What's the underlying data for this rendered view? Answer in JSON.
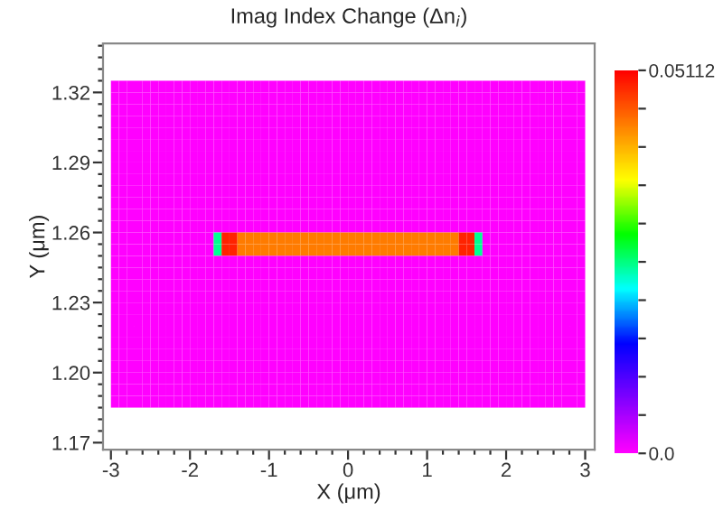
{
  "chart_data": {
    "type": "heatmap",
    "title": "Imag Index Change (Δn$_{i}$)",
    "xlabel": "X (μm)",
    "ylabel": "Y (μm)",
    "xlim": [
      -3.1,
      3.12
    ],
    "ylim": [
      1.167,
      1.341
    ],
    "xticks": [
      -3,
      {
        "value": -2.8,
        "label": null
      },
      {
        "value": -2.6,
        "label": null
      },
      {
        "value": -2.4,
        "label": null
      },
      {
        "value": -2.2,
        "label": null
      },
      -2,
      {
        "value": -1.8,
        "label": null
      },
      {
        "value": -1.6,
        "label": null
      },
      {
        "value": -1.4,
        "label": null
      },
      {
        "value": -1.2,
        "label": null
      },
      -1,
      {
        "value": -0.8,
        "label": null
      },
      {
        "value": -0.6,
        "label": null
      },
      {
        "value": -0.4,
        "label": null
      },
      {
        "value": -0.2,
        "label": null
      },
      0,
      {
        "value": 0.2,
        "label": null
      },
      {
        "value": 0.4,
        "label": null
      },
      {
        "value": 0.6,
        "label": null
      },
      {
        "value": 0.8,
        "label": null
      },
      1,
      {
        "value": 1.2,
        "label": null
      },
      {
        "value": 1.4,
        "label": null
      },
      {
        "value": 1.6,
        "label": null
      },
      {
        "value": 1.8,
        "label": null
      },
      2,
      {
        "value": 2.2,
        "label": null
      },
      {
        "value": 2.4,
        "label": null
      },
      {
        "value": 2.6,
        "label": null
      },
      {
        "value": 2.8,
        "label": null
      },
      3
    ],
    "yticks": [
      {
        "value": 1.17,
        "label": "1.17"
      },
      {
        "value": 1.175,
        "label": null
      },
      {
        "value": 1.18,
        "label": null
      },
      {
        "value": 1.185,
        "label": null
      },
      {
        "value": 1.19,
        "label": null
      },
      {
        "value": 1.195,
        "label": null
      },
      {
        "value": 1.2,
        "label": "1.20"
      },
      {
        "value": 1.205,
        "label": null
      },
      {
        "value": 1.21,
        "label": null
      },
      {
        "value": 1.215,
        "label": null
      },
      {
        "value": 1.22,
        "label": null
      },
      {
        "value": 1.225,
        "label": null
      },
      {
        "value": 1.23,
        "label": "1.23"
      },
      {
        "value": 1.235,
        "label": null
      },
      {
        "value": 1.24,
        "label": null
      },
      {
        "value": 1.245,
        "label": null
      },
      {
        "value": 1.25,
        "label": null
      },
      {
        "value": 1.255,
        "label": null
      },
      {
        "value": 1.26,
        "label": "1.26"
      },
      {
        "value": 1.265,
        "label": null
      },
      {
        "value": 1.27,
        "label": null
      },
      {
        "value": 1.275,
        "label": null
      },
      {
        "value": 1.28,
        "label": null
      },
      {
        "value": 1.285,
        "label": null
      },
      {
        "value": 1.29,
        "label": "1.29"
      },
      {
        "value": 1.295,
        "label": null
      },
      {
        "value": 1.3,
        "label": null
      },
      {
        "value": 1.305,
        "label": null
      },
      {
        "value": 1.31,
        "label": null
      },
      {
        "value": 1.315,
        "label": null
      },
      {
        "value": 1.32,
        "label": "1.32"
      },
      {
        "value": 1.325,
        "label": null
      },
      {
        "value": 1.33,
        "label": null
      },
      {
        "value": 1.335,
        "label": null
      },
      {
        "value": 1.34,
        "label": null
      }
    ],
    "clim": [
      0,
      0.05112
    ],
    "cticks": [
      {
        "value": 0,
        "label": "0.0"
      },
      {
        "value": 0.005112,
        "label": null
      },
      {
        "value": 0.010224,
        "label": null
      },
      {
        "value": 0.015336,
        "label": null
      },
      {
        "value": 0.020448,
        "label": null
      },
      {
        "value": 0.02556,
        "label": null
      },
      {
        "value": 0.030672,
        "label": null
      },
      {
        "value": 0.035784,
        "label": null
      },
      {
        "value": 0.040896,
        "label": null
      },
      {
        "value": 0.046008,
        "label": null
      },
      {
        "value": 0.05112,
        "label": "0.05112"
      }
    ],
    "x": [
      -2.95,
      -2.85,
      -2.75,
      -2.65,
      -2.55,
      -2.45,
      -2.35,
      -2.25,
      -2.15,
      -2.05,
      -1.95,
      -1.85,
      -1.75,
      -1.65,
      -1.55,
      -1.45,
      -1.35,
      -1.25,
      -1.15,
      -1.05,
      -0.95,
      -0.85,
      -0.75,
      -0.65,
      -0.55,
      -0.45,
      -0.35,
      -0.25,
      -0.15,
      -0.05,
      0.05,
      0.15,
      0.25,
      0.35,
      0.45,
      0.55,
      0.65,
      0.75,
      0.85,
      0.95,
      1.05,
      1.15,
      1.25,
      1.35,
      1.45,
      1.55,
      1.65,
      1.75,
      1.85,
      1.95,
      2.05,
      2.15,
      2.25,
      2.35,
      2.45,
      2.55,
      2.65,
      2.75,
      2.85,
      2.95
    ],
    "y": [
      1.3225,
      1.3175,
      1.3125,
      1.3075,
      1.3025,
      1.2975,
      1.2925,
      1.2875,
      1.2825,
      1.2775,
      1.2725,
      1.2675,
      1.2625,
      1.2575,
      1.2525,
      1.2475,
      1.2425,
      1.2375,
      1.2325,
      1.2275,
      1.2225,
      1.2175,
      1.2125,
      1.2075,
      1.2025,
      1.1975,
      1.1925,
      1.1875
    ],
    "cells": [
      [
        0,
        0,
        0,
        0,
        0,
        0,
        0,
        0,
        0,
        0,
        0,
        0,
        0,
        0,
        0,
        0,
        0,
        0,
        0,
        0,
        0,
        0,
        0,
        0,
        0,
        0,
        0,
        0,
        0,
        0,
        0,
        0,
        0,
        0,
        0,
        0,
        0,
        0,
        0,
        0,
        0,
        0,
        0,
        0,
        0,
        0,
        0,
        0,
        0,
        0,
        0,
        0,
        0,
        0,
        0,
        0,
        0,
        0,
        0,
        0
      ],
      [
        0,
        0,
        0,
        0,
        0,
        0,
        0,
        0,
        0,
        0,
        0,
        0,
        0,
        0,
        0,
        0,
        0,
        0,
        0,
        0,
        0,
        0,
        0,
        0,
        0,
        0,
        0,
        0,
        0,
        0,
        0,
        0,
        0,
        0,
        0,
        0,
        0,
        0,
        0,
        0,
        0,
        0,
        0,
        0,
        0,
        0,
        0,
        0,
        0,
        0,
        0,
        0,
        0,
        0,
        0,
        0,
        0,
        0,
        0,
        0
      ],
      [
        0,
        0,
        0,
        0,
        0,
        0,
        0,
        0,
        0,
        0,
        0,
        0,
        0,
        0,
        0,
        0,
        0,
        0,
        0,
        0,
        0,
        0,
        0,
        0,
        0,
        0,
        0,
        0,
        0,
        0,
        0,
        0,
        0,
        0,
        0,
        0,
        0,
        0,
        0,
        0,
        0,
        0,
        0,
        0,
        0,
        0,
        0,
        0,
        0,
        0,
        0,
        0,
        0,
        0,
        0,
        0,
        0,
        0,
        0,
        0
      ],
      [
        0,
        0,
        0,
        0,
        0,
        0,
        0,
        0,
        0,
        0,
        0,
        0,
        0,
        0,
        0,
        0,
        0,
        0,
        0,
        0,
        0,
        0,
        0,
        0,
        0,
        0,
        0,
        0,
        0,
        0,
        0,
        0,
        0,
        0,
        0,
        0,
        0,
        0,
        0,
        0,
        0,
        0,
        0,
        0,
        0,
        0,
        0,
        0,
        0,
        0,
        0,
        0,
        0,
        0,
        0,
        0,
        0,
        0,
        0,
        0
      ],
      [
        0,
        0,
        0,
        0,
        0,
        0,
        0,
        0,
        0,
        0,
        0,
        0,
        0,
        0,
        0,
        0,
        0,
        0,
        0,
        0,
        0,
        0,
        0,
        0,
        0,
        0,
        0,
        0,
        0,
        0,
        0,
        0,
        0,
        0,
        0,
        0,
        0,
        0,
        0,
        0,
        0,
        0,
        0,
        0,
        0,
        0,
        0,
        0,
        0,
        0,
        0,
        0,
        0,
        0,
        0,
        0,
        0,
        0,
        0,
        0
      ],
      [
        0,
        0,
        0,
        0,
        0,
        0,
        0,
        0,
        0,
        0,
        0,
        0,
        0,
        0,
        0,
        0,
        0,
        0,
        0,
        0,
        0,
        0,
        0,
        0,
        0,
        0,
        0,
        0,
        0,
        0,
        0,
        0,
        0,
        0,
        0,
        0,
        0,
        0,
        0,
        0,
        0,
        0,
        0,
        0,
        0,
        0,
        0,
        0,
        0,
        0,
        0,
        0,
        0,
        0,
        0,
        0,
        0,
        0,
        0,
        0
      ],
      [
        0,
        0,
        0,
        0,
        0,
        0,
        0,
        0,
        0,
        0,
        0,
        0,
        0,
        0,
        0,
        0,
        0,
        0,
        0,
        0,
        0,
        0,
        0,
        0,
        0,
        0,
        0,
        0,
        0,
        0,
        0,
        0,
        0,
        0,
        0,
        0,
        0,
        0,
        0,
        0,
        0,
        0,
        0,
        0,
        0,
        0,
        0,
        0,
        0,
        0,
        0,
        0,
        0,
        0,
        0,
        0,
        0,
        0,
        0,
        0
      ],
      [
        0,
        0,
        0,
        0,
        0,
        0,
        0,
        0,
        0,
        0,
        0,
        0,
        0,
        0,
        0,
        0,
        0,
        0,
        0,
        0,
        0,
        0,
        0,
        0,
        0,
        0,
        0,
        0,
        0,
        0,
        0,
        0,
        0,
        0,
        0,
        0,
        0,
        0,
        0,
        0,
        0,
        0,
        0,
        0,
        0,
        0,
        0,
        0,
        0,
        0,
        0,
        0,
        0,
        0,
        0,
        0,
        0,
        0,
        0,
        0
      ],
      [
        0,
        0,
        0,
        0,
        0,
        0,
        0,
        0,
        0,
        0,
        0,
        0,
        0,
        0,
        0,
        0,
        0,
        0,
        0,
        0,
        0,
        0,
        0,
        0,
        0,
        0,
        0,
        0,
        0,
        0,
        0,
        0,
        0,
        0,
        0,
        0,
        0,
        0,
        0,
        0,
        0,
        0,
        0,
        0,
        0,
        0,
        0,
        0,
        0,
        0,
        0,
        0,
        0,
        0,
        0,
        0,
        0,
        0,
        0,
        0
      ],
      [
        0,
        0,
        0,
        0,
        0,
        0,
        0,
        0,
        0,
        0,
        0,
        0,
        0,
        0,
        0,
        0,
        0,
        0,
        0,
        0,
        0,
        0,
        0,
        0,
        0,
        0,
        0,
        0,
        0,
        0,
        0,
        0,
        0,
        0,
        0,
        0,
        0,
        0,
        0,
        0,
        0,
        0,
        0,
        0,
        0,
        0,
        0,
        0,
        0,
        0,
        0,
        0,
        0,
        0,
        0,
        0,
        0,
        0,
        0,
        0
      ],
      [
        0,
        0,
        0,
        0,
        0,
        0,
        0,
        0,
        0,
        0,
        0,
        0,
        0,
        0,
        0,
        0,
        0,
        0,
        0,
        0,
        0,
        0,
        0,
        0,
        0,
        0,
        0,
        0,
        0,
        0,
        0,
        0,
        0,
        0,
        0,
        0,
        0,
        0,
        0,
        0,
        0,
        0,
        0,
        0,
        0,
        0,
        0,
        0,
        0,
        0,
        0,
        0,
        0,
        0,
        0,
        0,
        0,
        0,
        0,
        0
      ],
      [
        0,
        0,
        0,
        0,
        0,
        0,
        0,
        0,
        0,
        0,
        0,
        0,
        0,
        0,
        0,
        0,
        0,
        0,
        0,
        0,
        0,
        0,
        0,
        0,
        0,
        0,
        0,
        0,
        0,
        0,
        0,
        0,
        0,
        0,
        0,
        0,
        0,
        0,
        0,
        0,
        0,
        0,
        0,
        0,
        0,
        0,
        0,
        0,
        0,
        0,
        0,
        0,
        0,
        0,
        0,
        0,
        0,
        0,
        0,
        0
      ],
      [
        0,
        0,
        0,
        0,
        0,
        0,
        0,
        0,
        0,
        0,
        0,
        0,
        0,
        0,
        0,
        0,
        0,
        0,
        0,
        0,
        0,
        0,
        0,
        0,
        0,
        0,
        0,
        0,
        0,
        0,
        0,
        0,
        0,
        0,
        0,
        0,
        0,
        0,
        0,
        0,
        0,
        0,
        0,
        0,
        0,
        0,
        0,
        0,
        0,
        0,
        0,
        0,
        0,
        0,
        0,
        0,
        0,
        0,
        0,
        0
      ],
      [
        0,
        0,
        0,
        0,
        0,
        0,
        0,
        0,
        0,
        0,
        0,
        0,
        0,
        0.025,
        0.049,
        0.049,
        0.044,
        0.044,
        0.044,
        0.044,
        0.044,
        0.044,
        0.044,
        0.044,
        0.044,
        0.044,
        0.044,
        0.044,
        0.044,
        0.044,
        0.044,
        0.044,
        0.044,
        0.044,
        0.044,
        0.044,
        0.044,
        0.044,
        0.044,
        0.044,
        0.044,
        0.044,
        0.044,
        0.044,
        0.049,
        0.049,
        0.025,
        0,
        0,
        0,
        0,
        0,
        0,
        0,
        0,
        0,
        0,
        0,
        0,
        0
      ],
      [
        0,
        0,
        0,
        0,
        0,
        0,
        0,
        0,
        0,
        0,
        0,
        0,
        0,
        0.025,
        0.049,
        0.049,
        0.044,
        0.044,
        0.044,
        0.044,
        0.044,
        0.044,
        0.044,
        0.044,
        0.044,
        0.044,
        0.044,
        0.044,
        0.044,
        0.044,
        0.044,
        0.044,
        0.044,
        0.044,
        0.044,
        0.044,
        0.044,
        0.044,
        0.044,
        0.044,
        0.044,
        0.044,
        0.044,
        0.044,
        0.049,
        0.049,
        0.025,
        0,
        0,
        0,
        0,
        0,
        0,
        0,
        0,
        0,
        0,
        0,
        0,
        0
      ],
      [
        0,
        0,
        0,
        0,
        0,
        0,
        0,
        0,
        0,
        0,
        0,
        0,
        0,
        0,
        0,
        0,
        0,
        0,
        0,
        0,
        0,
        0,
        0,
        0,
        0,
        0,
        0,
        0,
        0,
        0,
        0,
        0,
        0,
        0,
        0,
        0,
        0,
        0,
        0,
        0,
        0,
        0,
        0,
        0,
        0,
        0,
        0,
        0,
        0,
        0,
        0,
        0,
        0,
        0,
        0,
        0,
        0,
        0,
        0,
        0
      ],
      [
        0,
        0,
        0,
        0,
        0,
        0,
        0,
        0,
        0,
        0,
        0,
        0,
        0,
        0,
        0,
        0,
        0,
        0,
        0,
        0,
        0,
        0,
        0,
        0,
        0,
        0,
        0,
        0,
        0,
        0,
        0,
        0,
        0,
        0,
        0,
        0,
        0,
        0,
        0,
        0,
        0,
        0,
        0,
        0,
        0,
        0,
        0,
        0,
        0,
        0,
        0,
        0,
        0,
        0,
        0,
        0,
        0,
        0,
        0,
        0
      ],
      [
        0,
        0,
        0,
        0,
        0,
        0,
        0,
        0,
        0,
        0,
        0,
        0,
        0,
        0,
        0,
        0,
        0,
        0,
        0,
        0,
        0,
        0,
        0,
        0,
        0,
        0,
        0,
        0,
        0,
        0,
        0,
        0,
        0,
        0,
        0,
        0,
        0,
        0,
        0,
        0,
        0,
        0,
        0,
        0,
        0,
        0,
        0,
        0,
        0,
        0,
        0,
        0,
        0,
        0,
        0,
        0,
        0,
        0,
        0,
        0
      ],
      [
        0,
        0,
        0,
        0,
        0,
        0,
        0,
        0,
        0,
        0,
        0,
        0,
        0,
        0,
        0,
        0,
        0,
        0,
        0,
        0,
        0,
        0,
        0,
        0,
        0,
        0,
        0,
        0,
        0,
        0,
        0,
        0,
        0,
        0,
        0,
        0,
        0,
        0,
        0,
        0,
        0,
        0,
        0,
        0,
        0,
        0,
        0,
        0,
        0,
        0,
        0,
        0,
        0,
        0,
        0,
        0,
        0,
        0,
        0,
        0
      ],
      [
        0,
        0,
        0,
        0,
        0,
        0,
        0,
        0,
        0,
        0,
        0,
        0,
        0,
        0,
        0,
        0,
        0,
        0,
        0,
        0,
        0,
        0,
        0,
        0,
        0,
        0,
        0,
        0,
        0,
        0,
        0,
        0,
        0,
        0,
        0,
        0,
        0,
        0,
        0,
        0,
        0,
        0,
        0,
        0,
        0,
        0,
        0,
        0,
        0,
        0,
        0,
        0,
        0,
        0,
        0,
        0,
        0,
        0,
        0,
        0
      ],
      [
        0,
        0,
        0,
        0,
        0,
        0,
        0,
        0,
        0,
        0,
        0,
        0,
        0,
        0,
        0,
        0,
        0,
        0,
        0,
        0,
        0,
        0,
        0,
        0,
        0,
        0,
        0,
        0,
        0,
        0,
        0,
        0,
        0,
        0,
        0,
        0,
        0,
        0,
        0,
        0,
        0,
        0,
        0,
        0,
        0,
        0,
        0,
        0,
        0,
        0,
        0,
        0,
        0,
        0,
        0,
        0,
        0,
        0,
        0,
        0
      ],
      [
        0,
        0,
        0,
        0,
        0,
        0,
        0,
        0,
        0,
        0,
        0,
        0,
        0,
        0,
        0,
        0,
        0,
        0,
        0,
        0,
        0,
        0,
        0,
        0,
        0,
        0,
        0,
        0,
        0,
        0,
        0,
        0,
        0,
        0,
        0,
        0,
        0,
        0,
        0,
        0,
        0,
        0,
        0,
        0,
        0,
        0,
        0,
        0,
        0,
        0,
        0,
        0,
        0,
        0,
        0,
        0,
        0,
        0,
        0,
        0
      ],
      [
        0,
        0,
        0,
        0,
        0,
        0,
        0,
        0,
        0,
        0,
        0,
        0,
        0,
        0,
        0,
        0,
        0,
        0,
        0,
        0,
        0,
        0,
        0,
        0,
        0,
        0,
        0,
        0,
        0,
        0,
        0,
        0,
        0,
        0,
        0,
        0,
        0,
        0,
        0,
        0,
        0,
        0,
        0,
        0,
        0,
        0,
        0,
        0,
        0,
        0,
        0,
        0,
        0,
        0,
        0,
        0,
        0,
        0,
        0,
        0
      ],
      [
        0,
        0,
        0,
        0,
        0,
        0,
        0,
        0,
        0,
        0,
        0,
        0,
        0,
        0,
        0,
        0,
        0,
        0,
        0,
        0,
        0,
        0,
        0,
        0,
        0,
        0,
        0,
        0,
        0,
        0,
        0,
        0,
        0,
        0,
        0,
        0,
        0,
        0,
        0,
        0,
        0,
        0,
        0,
        0,
        0,
        0,
        0,
        0,
        0,
        0,
        0,
        0,
        0,
        0,
        0,
        0,
        0,
        0,
        0,
        0
      ],
      [
        0,
        0,
        0,
        0,
        0,
        0,
        0,
        0,
        0,
        0,
        0,
        0,
        0,
        0,
        0,
        0,
        0,
        0,
        0,
        0,
        0,
        0,
        0,
        0,
        0,
        0,
        0,
        0,
        0,
        0,
        0,
        0,
        0,
        0,
        0,
        0,
        0,
        0,
        0,
        0,
        0,
        0,
        0,
        0,
        0,
        0,
        0,
        0,
        0,
        0,
        0,
        0,
        0,
        0,
        0,
        0,
        0,
        0,
        0,
        0
      ],
      [
        0,
        0,
        0,
        0,
        0,
        0,
        0,
        0,
        0,
        0,
        0,
        0,
        0,
        0,
        0,
        0,
        0,
        0,
        0,
        0,
        0,
        0,
        0,
        0,
        0,
        0,
        0,
        0,
        0,
        0,
        0,
        0,
        0,
        0,
        0,
        0,
        0,
        0,
        0,
        0,
        0,
        0,
        0,
        0,
        0,
        0,
        0,
        0,
        0,
        0,
        0,
        0,
        0,
        0,
        0,
        0,
        0,
        0,
        0,
        0
      ],
      [
        0,
        0,
        0,
        0,
        0,
        0,
        0,
        0,
        0,
        0,
        0,
        0,
        0,
        0,
        0,
        0,
        0,
        0,
        0,
        0,
        0,
        0,
        0,
        0,
        0,
        0,
        0,
        0,
        0,
        0,
        0,
        0,
        0,
        0,
        0,
        0,
        0,
        0,
        0,
        0,
        0,
        0,
        0,
        0,
        0,
        0,
        0,
        0,
        0,
        0,
        0,
        0,
        0,
        0,
        0,
        0,
        0,
        0,
        0,
        0
      ],
      [
        0,
        0,
        0,
        0,
        0,
        0,
        0,
        0,
        0,
        0,
        0,
        0,
        0,
        0,
        0,
        0,
        0,
        0,
        0,
        0,
        0,
        0,
        0,
        0,
        0,
        0,
        0,
        0,
        0,
        0,
        0,
        0,
        0,
        0,
        0,
        0,
        0,
        0,
        0,
        0,
        0,
        0,
        0,
        0,
        0,
        0,
        0,
        0,
        0,
        0,
        0,
        0,
        0,
        0,
        0,
        0,
        0,
        0,
        0,
        0
      ]
    ]
  }
}
